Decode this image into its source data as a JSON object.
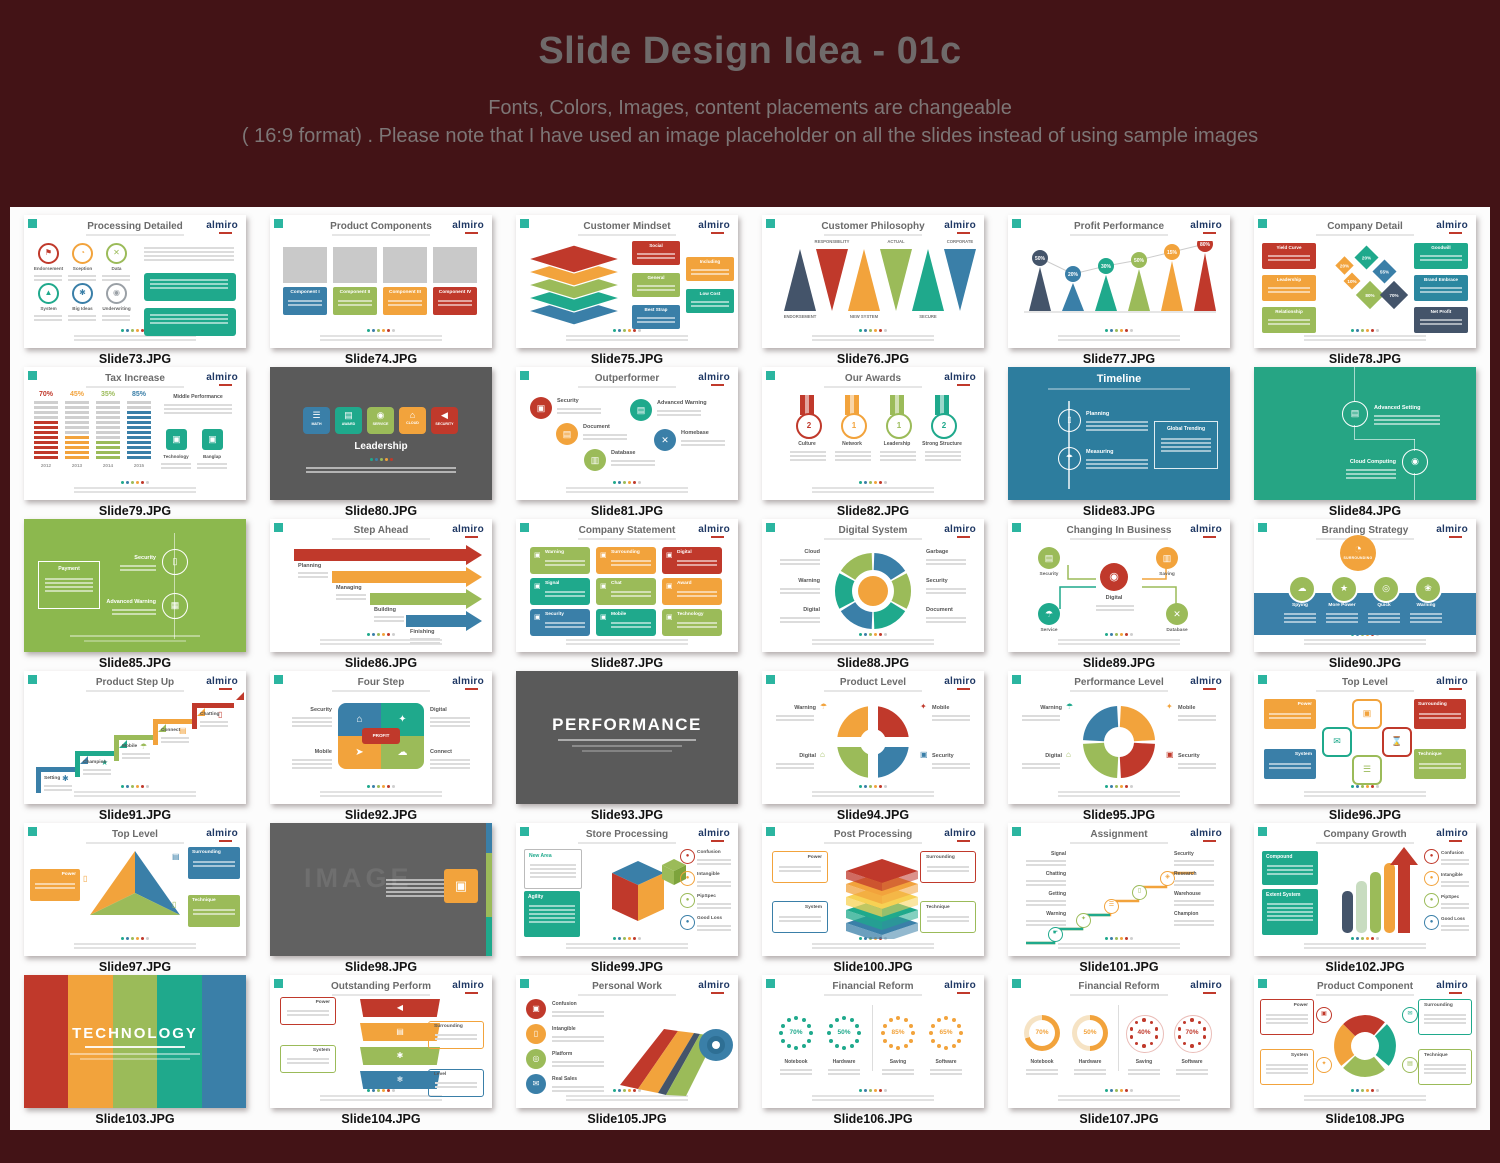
{
  "header": {
    "title": "Slide Design Idea - 01c",
    "subtitle1": "Fonts, Colors, Images, content placements are changeable",
    "subtitle2": "( 16:9 format) . Please note that I have used an image placeholder on all the slides instead of using sample images"
  },
  "logo": {
    "text": "almiro"
  },
  "palette": {
    "red": "#c0392b",
    "orange": "#f2a33c",
    "yellow": "#f7d154",
    "green": "#9bbb59",
    "teal": "#1fa98c",
    "blue": "#3a7fa8",
    "navy": "#44546a",
    "gray": "#9aa0a6",
    "dark": "#5a5a5a",
    "slideblue": "#2d7d9e",
    "slideteal": "#26a584",
    "slidegreen": "#8cb84e",
    "corner": "#2bb5a0",
    "logo_navy": "#1f3864",
    "page_bg": "#431316"
  },
  "icons": {
    "flag": "⚑",
    "clock": "◔",
    "tools": "✕",
    "cone": "▲",
    "gear": "✱",
    "rss": "◉",
    "home": "⌂",
    "bulb": "✦",
    "key": "➤",
    "wifi": "☁",
    "umbrella": "☂",
    "briefcase": "▣",
    "trophy": "★",
    "chart": "☰",
    "doc": "▤",
    "chat": "✉",
    "hourglass": "⌛",
    "speaker": "◀",
    "database": "▤",
    "snow": "❄",
    "laptop": "▤",
    "person": "◉",
    "battery": "▯",
    "lock": "◈",
    "target": "◎",
    "box": "▣",
    "hand": "☛",
    "medal": "◉"
  },
  "slides": [
    {
      "file": "Slide73.JPG",
      "title": "Processing Detailed",
      "kind": "iconGrid",
      "items": [
        [
          "Endorsement",
          "red",
          "flag"
        ],
        [
          "Sception",
          "orange",
          "clock"
        ],
        [
          "Data",
          "green",
          "tools"
        ],
        [
          "System",
          "teal",
          "cone"
        ],
        [
          "Big Ideas",
          "blue",
          "gear"
        ],
        [
          "Underwriting",
          "gray",
          "rss"
        ]
      ]
    },
    {
      "file": "Slide74.JPG",
      "title": "Product Components",
      "kind": "components",
      "items": [
        [
          "Component I",
          "blue"
        ],
        [
          "Component II",
          "green"
        ],
        [
          "Component III",
          "orange"
        ],
        [
          "Component IV",
          "red"
        ]
      ]
    },
    {
      "file": "Slide75.JPG",
      "title": "Customer Mindset",
      "kind": "layers",
      "items": [
        [
          "Social",
          "red"
        ],
        [
          "Including",
          "orange"
        ],
        [
          "General",
          "green"
        ],
        [
          "Low Cost",
          "teal"
        ],
        [
          "Best Strap",
          "blue"
        ]
      ]
    },
    {
      "file": "Slide76.JPG",
      "title": "Customer Philosophy",
      "kind": "triangles",
      "top": [
        "RESPONSIBILITY",
        "ACTUAL",
        "CORPORATE"
      ],
      "bottom": [
        "ENDORSEMENT",
        "NEW SYSTEM",
        "SECURE"
      ],
      "colors": [
        "navy",
        "red",
        "orange",
        "green",
        "teal",
        "blue"
      ]
    },
    {
      "file": "Slide77.JPG",
      "title": "Profit Performance",
      "kind": "cones",
      "values": [
        "50%",
        "20%",
        "30%",
        "50%",
        "15%",
        "80%"
      ],
      "colors": [
        "navy",
        "blue",
        "teal",
        "green",
        "orange",
        "red"
      ]
    },
    {
      "file": "Slide78.JPG",
      "title": "Company Detail",
      "kind": "diamonds",
      "left": [
        [
          "Yield Curve",
          "red"
        ],
        [
          "Leadership",
          "orange"
        ],
        [
          "Relationship",
          "green"
        ]
      ],
      "right": [
        [
          "Goodwill",
          "teal"
        ],
        [
          "Brand Embrace",
          "#2b87a0"
        ],
        [
          "Net Profit",
          "navy"
        ]
      ],
      "values": [
        "20%",
        "20%",
        "55%",
        "10%",
        "80%",
        "70%"
      ]
    },
    {
      "file": "Slide79.JPG",
      "title": "Tax Increase",
      "kind": "bars",
      "values": [
        "70%",
        "45%",
        "35%",
        "85%"
      ],
      "years": [
        "2012",
        "2013",
        "2014",
        "2015"
      ],
      "colors": [
        "red",
        "orange",
        "green",
        "blue"
      ],
      "heading": "Middle Performance",
      "boxes": [
        "Technology",
        "Banglap"
      ]
    },
    {
      "file": "Slide80.JPG",
      "title": "Leadership",
      "kind": "darkTiles",
      "items": [
        [
          "MATH",
          "blue"
        ],
        [
          "AWARD",
          "teal"
        ],
        [
          "SERVICE",
          "green"
        ],
        [
          "CLOUD",
          "orange"
        ],
        [
          "SECURITY",
          "red"
        ]
      ]
    },
    {
      "file": "Slide81.JPG",
      "title": "Outperformer",
      "kind": "circleList",
      "items": [
        [
          "Security",
          "red"
        ],
        [
          "Document",
          "orange"
        ],
        [
          "Database",
          "green"
        ],
        [
          "Advanced Warning",
          "teal"
        ],
        [
          "Homebase",
          "blue"
        ]
      ]
    },
    {
      "file": "Slide82.JPG",
      "title": "Our Awards",
      "kind": "medals",
      "items": [
        [
          "Culture",
          "red",
          "2"
        ],
        [
          "Network",
          "orange",
          "1"
        ],
        [
          "Leadership",
          "green",
          "1"
        ],
        [
          "Strong Structure",
          "teal",
          "2"
        ]
      ]
    },
    {
      "file": "Slide83.JPG",
      "title": "Timeline",
      "kind": "timeline",
      "items": [
        "Planning",
        "Measuring"
      ],
      "box": "Global Trending"
    },
    {
      "file": "Slide84.JPG",
      "title": null,
      "kind": "tealSlide",
      "items": [
        "Advanced Setting",
        "Cloud Computing"
      ]
    },
    {
      "file": "Slide85.JPG",
      "title": null,
      "kind": "greenSlide",
      "box": "Payment",
      "items": [
        "Security",
        "Advanced Warning"
      ]
    },
    {
      "file": "Slide86.JPG",
      "title": "Step Ahead",
      "kind": "arrows",
      "items": [
        [
          "Planning",
          "red"
        ],
        [
          "Managing",
          "orange"
        ],
        [
          "Building",
          "green"
        ],
        [
          "Finishing",
          "blue"
        ]
      ]
    },
    {
      "file": "Slide87.JPG",
      "title": "Company Statement",
      "kind": "grid9",
      "items": [
        [
          "Warning",
          "green"
        ],
        [
          "Surrounding",
          "orange"
        ],
        [
          "Digital",
          "red"
        ],
        [
          "Signal",
          "teal"
        ],
        [
          "Chat",
          "green"
        ],
        [
          "Award",
          "orange"
        ],
        [
          "Security",
          "blue"
        ],
        [
          "Mobile",
          "teal"
        ],
        [
          "Technology",
          "green"
        ]
      ]
    },
    {
      "file": "Slide88.JPG",
      "title": "Digital System",
      "kind": "donut",
      "left": [
        "Cloud",
        "Warning",
        "Digital"
      ],
      "right": [
        "Garbage",
        "Security",
        "Document"
      ]
    },
    {
      "file": "Slide89.JPG",
      "title": "Changing In Business",
      "kind": "flow",
      "center": "Digital",
      "items": [
        [
          "Security",
          "green"
        ],
        [
          "Saving",
          "orange"
        ],
        [
          "Service",
          "teal"
        ],
        [
          "Database",
          "green"
        ]
      ]
    },
    {
      "file": "Slide90.JPG",
      "title": "Branding Strategy",
      "kind": "band",
      "topLabel": "Surrounding",
      "items": [
        "Spying",
        "More Power",
        "Quick",
        "Warning"
      ]
    },
    {
      "file": "Slide91.JPG",
      "title": "Product Step Up",
      "kind": "steps",
      "items": [
        [
          "Setting",
          "blue"
        ],
        [
          "Champion",
          "teal"
        ],
        [
          "Mobile",
          "green"
        ],
        [
          "Connect",
          "orange"
        ],
        [
          "Chatting",
          "red"
        ]
      ]
    },
    {
      "file": "Slide92.JPG",
      "title": "Four Step",
      "kind": "fourStep",
      "center": "PROFIT",
      "labels": [
        "Security",
        "Digital",
        "Mobile",
        "Connect"
      ]
    },
    {
      "file": "Slide93.JPG",
      "title": "PERFORMANCE",
      "kind": "darkTitle"
    },
    {
      "file": "Slide94.JPG",
      "title": "Product Level",
      "kind": "plusDonut",
      "labels": [
        "Warning",
        "Mobile",
        "Digital",
        "Security"
      ]
    },
    {
      "file": "Slide95.JPG",
      "title": "Performance Level",
      "kind": "cycleDonut",
      "labels": [
        "Warning",
        "Mobile",
        "Digital",
        "Security"
      ]
    },
    {
      "file": "Slide96.JPG",
      "title": "Top Level",
      "kind": "fourSquares",
      "boxes": [
        [
          "Power",
          "orange"
        ],
        [
          "Surrounding",
          "red"
        ],
        [
          "System",
          "blue"
        ],
        [
          "Technique",
          "green"
        ]
      ]
    },
    {
      "file": "Slide97.JPG",
      "title": "Top Level",
      "kind": "triangleTri",
      "boxes": [
        [
          "Power",
          "orange"
        ],
        [
          "Surrounding",
          "blue"
        ],
        [
          "Technique",
          "green"
        ]
      ]
    },
    {
      "file": "Slide98.JPG",
      "title": "IMAGE",
      "kind": "imagePlaceholder"
    },
    {
      "file": "Slide99.JPG",
      "title": "Store Processing",
      "kind": "cube",
      "leftBoxes": [
        [
          "New Area",
          false
        ],
        [
          "Agility",
          true
        ]
      ],
      "items": [
        [
          "Confusion",
          "red"
        ],
        [
          "Intangible",
          "orange"
        ],
        [
          "PipSpec",
          "green"
        ],
        [
          "Good Loss",
          "blue"
        ]
      ]
    },
    {
      "file": "Slide100.JPG",
      "title": "Post Processing",
      "kind": "stack",
      "boxes": [
        [
          "Power",
          "orange"
        ],
        [
          "Surrounding",
          "red"
        ],
        [
          "System",
          "blue"
        ],
        [
          "Technique",
          "green"
        ]
      ]
    },
    {
      "file": "Slide101.JPG",
      "title": "Assignment",
      "kind": "stairs",
      "left": [
        "Signal",
        "Chatting",
        "Getting",
        "Warning"
      ],
      "right": [
        "Security",
        "Research",
        "Warehouse",
        "Champion"
      ]
    },
    {
      "file": "Slide102.JPG",
      "title": "Company Growth",
      "kind": "ribbons",
      "leftBoxes": [
        [
          "Compound",
          true
        ],
        [
          "Extent System",
          true
        ]
      ],
      "items": [
        [
          "Confusion",
          "red"
        ],
        [
          "Intangible",
          "orange"
        ],
        [
          "PipSpec",
          "green"
        ],
        [
          "Good Loss",
          "blue"
        ]
      ]
    },
    {
      "file": "Slide103.JPG",
      "title": "TECHNOLOGY",
      "kind": "stripes"
    },
    {
      "file": "Slide104.JPG",
      "title": "Outstanding Perform",
      "kind": "banners",
      "boxes": [
        [
          "Power",
          "red"
        ],
        [
          "Surrounding",
          "orange"
        ],
        [
          "System",
          "green"
        ],
        [
          "Level",
          "blue"
        ]
      ]
    },
    {
      "file": "Slide105.JPG",
      "title": "Personal Work",
      "kind": "roll",
      "items": [
        [
          "Confusion",
          "red"
        ],
        [
          "Intangible",
          "orange"
        ],
        [
          "Platform",
          "green"
        ],
        [
          "Real Sales",
          "blue"
        ]
      ]
    },
    {
      "file": "Slide106.JPG",
      "title": "Financial Reform",
      "kind": "dotGauges",
      "gauges": [
        [
          "70%",
          "teal",
          "Notebook"
        ],
        [
          "50%",
          "teal",
          "Hardware"
        ],
        [
          "85%",
          "orange",
          "Saving"
        ],
        [
          "65%",
          "orange",
          "Software"
        ]
      ]
    },
    {
      "file": "Slide107.JPG",
      "title": "Financial Reform",
      "kind": "mixGauges",
      "gauges": [
        [
          "70%",
          "orange",
          "Notebook"
        ],
        [
          "50%",
          "orange",
          "Hardware"
        ],
        [
          "40%",
          "red",
          "Saving"
        ],
        [
          "70%",
          "red",
          "Software"
        ]
      ]
    },
    {
      "file": "Slide108.JPG",
      "title": "Product Component",
      "kind": "cycleArrows",
      "boxes": [
        [
          "Power",
          "red"
        ],
        [
          "Surrounding",
          "teal"
        ],
        [
          "System",
          "orange"
        ],
        [
          "Technique",
          "green"
        ]
      ]
    }
  ]
}
